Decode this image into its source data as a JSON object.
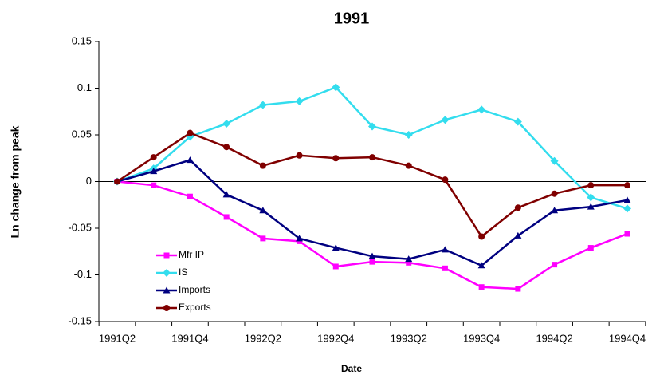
{
  "chart_data": {
    "type": "line",
    "title": "1991",
    "x_label": "Date",
    "y_label": "Ln change from peak",
    "categories": [
      "1991Q2",
      null,
      "1991Q4",
      null,
      "1992Q2",
      null,
      "1992Q4",
      null,
      "1993Q2",
      null,
      "1993Q4",
      null,
      "1994Q2",
      null,
      "1994Q4"
    ],
    "series": [
      {
        "name": "Mfr IP",
        "color": "#ff00ff",
        "marker": "square",
        "values": [
          0,
          -0.004,
          -0.016,
          -0.038,
          -0.061,
          -0.064,
          -0.091,
          -0.086,
          -0.087,
          -0.093,
          -0.113,
          -0.115,
          -0.089,
          -0.071,
          -0.056
        ]
      },
      {
        "name": "IS",
        "color": "#33ddee",
        "marker": "diamond",
        "values": [
          0,
          0.014,
          0.048,
          0.062,
          0.082,
          0.086,
          0.101,
          0.059,
          0.05,
          0.066,
          0.077,
          0.064,
          0.022,
          -0.017,
          -0.029
        ]
      },
      {
        "name": "Imports",
        "color": "#000080",
        "marker": "triangle",
        "values": [
          0,
          0.011,
          0.023,
          -0.014,
          -0.031,
          -0.061,
          -0.071,
          -0.08,
          -0.083,
          -0.073,
          -0.09,
          -0.058,
          -0.031,
          -0.027,
          -0.02
        ]
      },
      {
        "name": "Exports",
        "color": "#800000",
        "marker": "circle",
        "values": [
          0,
          0.026,
          0.052,
          0.037,
          0.017,
          0.028,
          0.025,
          0.026,
          0.017,
          0.002,
          -0.059,
          -0.028,
          -0.013,
          -0.004,
          -0.004
        ]
      }
    ],
    "ylim": [
      -0.15,
      0.15
    ],
    "yticks": [
      -0.15,
      -0.1,
      -0.05,
      0,
      0.05,
      0.1,
      0.15
    ],
    "grid": false,
    "legend": "lower-left"
  }
}
